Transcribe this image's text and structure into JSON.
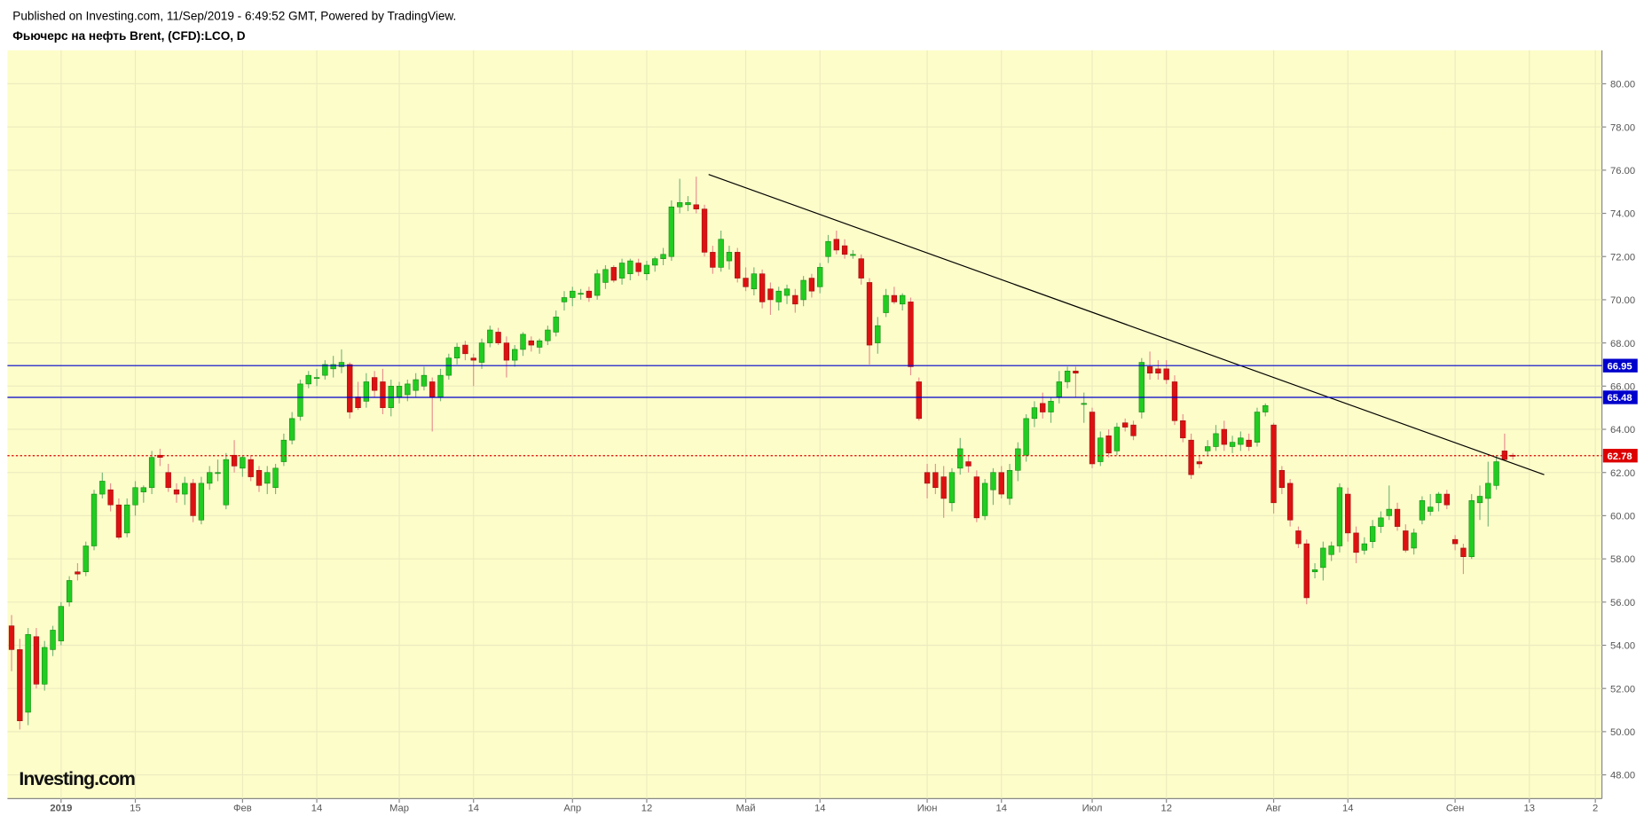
{
  "header": {
    "published": "Published on Investing.com, 11/Sep/2019 - 6:49:52 GMT, Powered by TradingView.",
    "symbol": "Фьючерс на нефть Brent, (CFD):LCO, D"
  },
  "logo": "Investing.com",
  "chart_data": {
    "type": "candlestick",
    "up_color": "#22cc22",
    "down_color": "#dd1111",
    "grid": true,
    "ylim": [
      46.9,
      81.55
    ],
    "xlim": [
      -0.5,
      192.8
    ],
    "yticks": [
      {
        "value": 48,
        "label": "48.00"
      },
      {
        "value": 50,
        "label": "50.00"
      },
      {
        "value": 52,
        "label": "52.00"
      },
      {
        "value": 54,
        "label": "54.00"
      },
      {
        "value": 56,
        "label": "56.00"
      },
      {
        "value": 58,
        "label": "58.00"
      },
      {
        "value": 60,
        "label": "60.00"
      },
      {
        "value": 62,
        "label": "62.00"
      },
      {
        "value": 64,
        "label": "64.00"
      },
      {
        "value": 66,
        "label": "66.00"
      },
      {
        "value": 68,
        "label": "68.00"
      },
      {
        "value": 70,
        "label": "70.00"
      },
      {
        "value": 72,
        "label": "72.00"
      },
      {
        "value": 74,
        "label": "74.00"
      },
      {
        "value": 76,
        "label": "76.00"
      },
      {
        "value": 78,
        "label": "78.00"
      },
      {
        "value": 80,
        "label": "80.00"
      }
    ],
    "xticks": [
      {
        "value": 6,
        "label": "2019"
      },
      {
        "value": 15,
        "label": "15"
      },
      {
        "value": 28,
        "label": "Фев"
      },
      {
        "value": 37,
        "label": "14"
      },
      {
        "value": 47,
        "label": "Мар"
      },
      {
        "value": 56,
        "label": "14"
      },
      {
        "value": 68,
        "label": "Апр"
      },
      {
        "value": 77,
        "label": "12"
      },
      {
        "value": 89,
        "label": "Май"
      },
      {
        "value": 98,
        "label": "14"
      },
      {
        "value": 111,
        "label": "Июн"
      },
      {
        "value": 120,
        "label": "14"
      },
      {
        "value": 131,
        "label": "Июл"
      },
      {
        "value": 140,
        "label": "12"
      },
      {
        "value": 153,
        "label": "Авг"
      },
      {
        "value": 162,
        "label": "14"
      },
      {
        "value": 175,
        "label": "Сен"
      },
      {
        "value": 184,
        "label": "13"
      },
      {
        "value": 192,
        "label": "2"
      }
    ],
    "levels": [
      {
        "value": 66.95,
        "color": "#0000cc"
      },
      {
        "value": 65.48,
        "color": "#0000cc"
      },
      {
        "value": 62.78,
        "color": "#dd0000"
      }
    ],
    "trendline": {
      "x": [
        84.5,
        185.8
      ],
      "y": [
        75.8,
        61.9
      ],
      "color": "#000000"
    },
    "values": [
      [
        54.9,
        55.4,
        52.8,
        53.8
      ],
      [
        53.8,
        54.3,
        50.1,
        50.5
      ],
      [
        50.9,
        54.8,
        50.3,
        54.5
      ],
      [
        54.4,
        54.8,
        52.0,
        52.2
      ],
      [
        52.2,
        54.2,
        51.9,
        53.9
      ],
      [
        53.8,
        54.9,
        53.5,
        54.7
      ],
      [
        54.2,
        56.0,
        54.0,
        55.8
      ],
      [
        56.0,
        57.2,
        55.8,
        57.0
      ],
      [
        57.4,
        57.8,
        57.0,
        57.3
      ],
      [
        57.4,
        58.8,
        57.2,
        58.6
      ],
      [
        58.6,
        61.2,
        58.4,
        61.0
      ],
      [
        61.0,
        62.0,
        60.8,
        61.6
      ],
      [
        61.2,
        61.5,
        60.2,
        60.5
      ],
      [
        60.5,
        60.8,
        58.9,
        59.0
      ],
      [
        59.2,
        60.8,
        59.0,
        60.5
      ],
      [
        60.5,
        61.6,
        60.0,
        61.3
      ],
      [
        61.1,
        61.4,
        60.6,
        61.3
      ],
      [
        61.3,
        63.0,
        61.0,
        62.7
      ],
      [
        62.8,
        63.1,
        62.3,
        62.7
      ],
      [
        62.0,
        62.4,
        61.1,
        61.3
      ],
      [
        61.2,
        61.5,
        60.6,
        61.0
      ],
      [
        61.0,
        61.8,
        60.5,
        61.5
      ],
      [
        61.5,
        61.7,
        59.7,
        60.0
      ],
      [
        59.8,
        61.8,
        59.6,
        61.5
      ],
      [
        61.5,
        62.3,
        61.2,
        62.0
      ],
      [
        62.0,
        62.6,
        61.6,
        62.0
      ],
      [
        60.5,
        62.9,
        60.3,
        62.6
      ],
      [
        62.8,
        63.5,
        62.0,
        62.3
      ],
      [
        62.2,
        62.8,
        61.8,
        62.7
      ],
      [
        62.6,
        62.8,
        61.6,
        61.8
      ],
      [
        62.1,
        62.3,
        61.1,
        61.4
      ],
      [
        61.5,
        62.3,
        61.0,
        62.0
      ],
      [
        61.3,
        62.4,
        61.0,
        62.2
      ],
      [
        62.5,
        63.8,
        62.3,
        63.5
      ],
      [
        63.5,
        64.8,
        63.3,
        64.5
      ],
      [
        64.6,
        66.3,
        64.4,
        66.1
      ],
      [
        66.1,
        66.7,
        65.9,
        66.5
      ],
      [
        66.4,
        66.8,
        66.0,
        66.4
      ],
      [
        66.5,
        67.2,
        66.3,
        67.0
      ],
      [
        66.8,
        67.4,
        66.4,
        67.0
      ],
      [
        66.9,
        67.7,
        66.6,
        67.1
      ],
      [
        67.0,
        67.1,
        64.5,
        64.8
      ],
      [
        65.5,
        66.2,
        64.9,
        65.0
      ],
      [
        65.3,
        66.6,
        65.0,
        66.2
      ],
      [
        66.4,
        66.7,
        65.5,
        65.8
      ],
      [
        66.2,
        66.8,
        64.7,
        65.0
      ],
      [
        65.0,
        66.3,
        64.6,
        66.0
      ],
      [
        65.5,
        66.2,
        65.2,
        66.0
      ],
      [
        65.6,
        66.3,
        65.3,
        66.1
      ],
      [
        65.8,
        66.6,
        65.5,
        66.3
      ],
      [
        66.0,
        66.9,
        65.8,
        66.5
      ],
      [
        66.2,
        66.4,
        63.9,
        65.5
      ],
      [
        65.5,
        66.8,
        65.3,
        66.5
      ],
      [
        66.5,
        67.5,
        66.3,
        67.3
      ],
      [
        67.3,
        68.0,
        67.0,
        67.8
      ],
      [
        67.9,
        68.1,
        67.2,
        67.5
      ],
      [
        67.3,
        67.5,
        66.0,
        67.2
      ],
      [
        67.1,
        68.2,
        66.8,
        68.0
      ],
      [
        68.0,
        68.8,
        67.8,
        68.6
      ],
      [
        68.5,
        68.7,
        67.9,
        68.0
      ],
      [
        68.0,
        68.3,
        66.4,
        67.2
      ],
      [
        67.2,
        67.9,
        66.9,
        67.7
      ],
      [
        67.7,
        68.5,
        67.4,
        68.4
      ],
      [
        68.1,
        68.3,
        67.6,
        67.9
      ],
      [
        67.8,
        68.2,
        67.5,
        68.1
      ],
      [
        68.1,
        68.8,
        67.9,
        68.6
      ],
      [
        68.5,
        69.5,
        68.3,
        69.2
      ],
      [
        69.9,
        70.4,
        69.5,
        70.1
      ],
      [
        70.1,
        70.6,
        69.7,
        70.4
      ],
      [
        70.3,
        70.5,
        70.0,
        70.3
      ],
      [
        70.4,
        70.6,
        69.9,
        70.1
      ],
      [
        70.2,
        71.4,
        70.0,
        71.2
      ],
      [
        70.8,
        71.6,
        70.5,
        71.4
      ],
      [
        71.5,
        71.6,
        70.8,
        70.9
      ],
      [
        71.0,
        71.9,
        70.7,
        71.7
      ],
      [
        71.2,
        71.9,
        70.9,
        71.8
      ],
      [
        71.7,
        71.9,
        71.1,
        71.3
      ],
      [
        71.2,
        71.8,
        70.9,
        71.6
      ],
      [
        71.6,
        72.0,
        71.3,
        71.9
      ],
      [
        71.9,
        72.4,
        71.6,
        72.1
      ],
      [
        72.0,
        74.6,
        71.8,
        74.3
      ],
      [
        74.3,
        75.6,
        74.0,
        74.5
      ],
      [
        74.4,
        74.8,
        74.1,
        74.5
      ],
      [
        74.4,
        75.7,
        74.0,
        74.2
      ],
      [
        74.2,
        74.4,
        72.0,
        72.2
      ],
      [
        72.2,
        72.5,
        71.2,
        71.5
      ],
      [
        71.5,
        73.2,
        71.3,
        72.8
      ],
      [
        71.8,
        72.5,
        71.4,
        72.2
      ],
      [
        72.2,
        72.4,
        70.8,
        71.0
      ],
      [
        71.0,
        71.5,
        70.4,
        70.6
      ],
      [
        70.5,
        71.5,
        70.2,
        71.2
      ],
      [
        71.2,
        71.4,
        69.6,
        69.9
      ],
      [
        70.5,
        70.8,
        69.3,
        70.0
      ],
      [
        69.9,
        70.6,
        69.5,
        70.4
      ],
      [
        70.2,
        70.7,
        69.8,
        70.5
      ],
      [
        70.2,
        70.5,
        69.4,
        69.8
      ],
      [
        70.0,
        71.1,
        69.7,
        70.9
      ],
      [
        71.0,
        71.2,
        70.1,
        70.4
      ],
      [
        70.6,
        71.7,
        70.3,
        71.5
      ],
      [
        72.0,
        73.0,
        71.7,
        72.7
      ],
      [
        72.8,
        73.2,
        72.1,
        72.3
      ],
      [
        72.5,
        72.8,
        71.9,
        72.1
      ],
      [
        72.1,
        72.3,
        71.9,
        72.1
      ],
      [
        71.9,
        72.1,
        70.7,
        71.0
      ],
      [
        70.8,
        71.0,
        67.0,
        67.9
      ],
      [
        68.0,
        69.2,
        67.5,
        68.8
      ],
      [
        69.4,
        70.5,
        69.2,
        70.2
      ],
      [
        70.2,
        70.6,
        69.8,
        69.9
      ],
      [
        69.8,
        70.3,
        69.5,
        70.2
      ],
      [
        69.9,
        70.1,
        66.5,
        66.9
      ],
      [
        66.2,
        66.4,
        64.4,
        64.5
      ],
      [
        62.0,
        62.4,
        60.8,
        61.5
      ],
      [
        62.0,
        62.4,
        61.0,
        61.3
      ],
      [
        61.8,
        62.3,
        59.9,
        60.8
      ],
      [
        60.6,
        62.2,
        60.2,
        62.0
      ],
      [
        62.2,
        63.6,
        61.9,
        63.1
      ],
      [
        62.5,
        62.8,
        62.0,
        62.3
      ],
      [
        61.8,
        62.1,
        59.7,
        59.9
      ],
      [
        60.0,
        61.7,
        59.8,
        61.5
      ],
      [
        61.2,
        62.2,
        60.5,
        62.0
      ],
      [
        62.0,
        62.3,
        60.8,
        61.0
      ],
      [
        60.8,
        62.4,
        60.5,
        62.1
      ],
      [
        62.1,
        63.4,
        61.6,
        63.1
      ],
      [
        62.8,
        64.7,
        62.5,
        64.5
      ],
      [
        64.5,
        65.3,
        64.1,
        65.0
      ],
      [
        65.2,
        65.7,
        64.5,
        64.8
      ],
      [
        64.8,
        65.5,
        64.3,
        65.3
      ],
      [
        65.5,
        66.7,
        65.2,
        66.2
      ],
      [
        66.2,
        66.9,
        65.9,
        66.7
      ],
      [
        66.7,
        66.9,
        65.5,
        66.6
      ],
      [
        65.2,
        65.7,
        64.3,
        65.2
      ],
      [
        64.8,
        65.0,
        62.2,
        62.4
      ],
      [
        62.5,
        63.9,
        62.3,
        63.6
      ],
      [
        63.7,
        64.0,
        62.7,
        62.9
      ],
      [
        63.0,
        64.3,
        62.8,
        64.1
      ],
      [
        64.3,
        64.5,
        63.9,
        64.1
      ],
      [
        64.2,
        64.4,
        63.5,
        63.7
      ],
      [
        64.8,
        67.3,
        64.5,
        67.1
      ],
      [
        66.9,
        67.6,
        66.3,
        66.6
      ],
      [
        66.8,
        67.2,
        66.3,
        66.6
      ],
      [
        66.8,
        67.2,
        66.1,
        66.3
      ],
      [
        66.2,
        66.5,
        64.2,
        64.4
      ],
      [
        64.4,
        64.7,
        63.4,
        63.6
      ],
      [
        63.5,
        63.8,
        61.7,
        61.9
      ],
      [
        62.5,
        62.8,
        62.2,
        62.4
      ],
      [
        63.0,
        63.5,
        62.8,
        63.2
      ],
      [
        63.2,
        64.2,
        63.0,
        63.8
      ],
      [
        64.0,
        64.4,
        63.0,
        63.3
      ],
      [
        63.2,
        63.7,
        62.9,
        63.4
      ],
      [
        63.3,
        63.9,
        63.0,
        63.6
      ],
      [
        63.5,
        63.8,
        63.0,
        63.2
      ],
      [
        63.4,
        65.0,
        63.2,
        64.8
      ],
      [
        64.8,
        65.2,
        64.6,
        65.1
      ],
      [
        64.2,
        64.3,
        60.1,
        60.6
      ],
      [
        62.1,
        62.3,
        61.0,
        61.3
      ],
      [
        61.5,
        61.7,
        59.5,
        59.8
      ],
      [
        59.3,
        59.5,
        58.5,
        58.7
      ],
      [
        58.7,
        58.9,
        55.9,
        56.2
      ],
      [
        57.4,
        57.8,
        57.1,
        57.5
      ],
      [
        57.6,
        58.8,
        57.0,
        58.5
      ],
      [
        58.2,
        58.8,
        57.9,
        58.6
      ],
      [
        58.6,
        61.5,
        58.3,
        61.3
      ],
      [
        61.0,
        61.3,
        58.8,
        59.2
      ],
      [
        59.2,
        59.5,
        57.8,
        58.3
      ],
      [
        58.4,
        59.0,
        58.2,
        58.7
      ],
      [
        58.8,
        59.8,
        58.5,
        59.5
      ],
      [
        59.5,
        60.2,
        59.2,
        59.9
      ],
      [
        60.0,
        61.4,
        59.8,
        60.3
      ],
      [
        60.3,
        60.6,
        59.3,
        59.5
      ],
      [
        59.3,
        59.6,
        58.3,
        58.4
      ],
      [
        58.5,
        59.4,
        58.2,
        59.2
      ],
      [
        59.8,
        60.9,
        59.6,
        60.7
      ],
      [
        60.2,
        61.0,
        60.0,
        60.4
      ],
      [
        60.6,
        61.1,
        60.2,
        61.0
      ],
      [
        61.0,
        61.2,
        60.3,
        60.5
      ],
      [
        58.9,
        59.1,
        58.4,
        58.7
      ],
      [
        58.5,
        58.7,
        57.3,
        58.1
      ],
      [
        58.1,
        61.0,
        58.0,
        60.7
      ],
      [
        60.6,
        61.4,
        59.8,
        60.9
      ],
      [
        60.8,
        62.5,
        59.5,
        61.5
      ],
      [
        61.4,
        62.8,
        61.2,
        62.5
      ],
      [
        63.0,
        63.8,
        62.6,
        62.6
      ],
      [
        62.8,
        62.9,
        62.6,
        62.78
      ]
    ]
  }
}
